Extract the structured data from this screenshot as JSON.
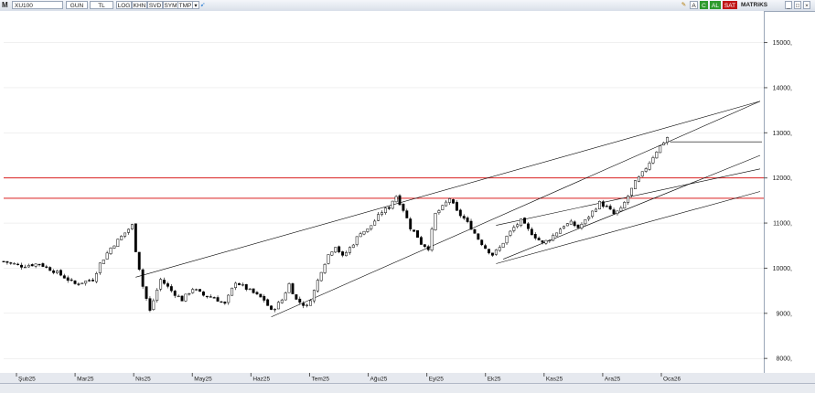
{
  "toolbar": {
    "logo": "M",
    "symbol": "XU100",
    "period": "GUN",
    "currency": "TL",
    "buttons": [
      "LOG",
      "KHN",
      "SVD",
      "SYM",
      "TMP"
    ],
    "dropdown": "▾",
    "pin": "➹",
    "edit": "✎",
    "a_label": "A",
    "c_label": "C",
    "buy_label": "AL",
    "sell_label": "SAT",
    "matrix_label": "MATRiKS",
    "min": "_",
    "max": "□",
    "close": "×"
  },
  "colors": {
    "candle_up": "#ffffff",
    "candle_down": "#000000",
    "horizontal_level": "#d40000",
    "trendline": "#000000",
    "grid": "#e0e0e0"
  },
  "chart_data": {
    "type": "candlestick",
    "instrument": "XU100",
    "ylim": [
      7700,
      15700
    ],
    "y_ticks": [
      8000,
      9000,
      10000,
      11000,
      12000,
      13000,
      14000,
      15000
    ],
    "y_tick_labels": [
      "8000,",
      "9000,",
      "10000,",
      "11000,",
      "12000,",
      "13000,",
      "14000,",
      "15000,"
    ],
    "x_ticks": [
      "Şub25",
      "Mar25",
      "Nis25",
      "May25",
      "Haz25",
      "Tem25",
      "Ağu25",
      "Eyl25",
      "Ek25",
      "Kas25",
      "Ara25",
      "Oca26"
    ],
    "close_path": [
      [
        0,
        10150
      ],
      [
        5,
        10050
      ],
      [
        10,
        10100
      ],
      [
        15,
        9900
      ],
      [
        20,
        9650
      ],
      [
        25,
        9750
      ],
      [
        27,
        10100
      ],
      [
        30,
        10450
      ],
      [
        33,
        10700
      ],
      [
        36,
        10950
      ],
      [
        37,
        10400
      ],
      [
        39,
        9600
      ],
      [
        41,
        9050
      ],
      [
        44,
        9750
      ],
      [
        47,
        9500
      ],
      [
        50,
        9300
      ],
      [
        53,
        9550
      ],
      [
        56,
        9400
      ],
      [
        59,
        9350
      ],
      [
        62,
        9200
      ],
      [
        65,
        9700
      ],
      [
        67,
        9600
      ],
      [
        70,
        9450
      ],
      [
        73,
        9300
      ],
      [
        75,
        9050
      ],
      [
        78,
        9300
      ],
      [
        80,
        9650
      ],
      [
        82,
        9300
      ],
      [
        85,
        9150
      ],
      [
        87,
        9500
      ],
      [
        89,
        9950
      ],
      [
        91,
        10300
      ],
      [
        93,
        10500
      ],
      [
        95,
        10250
      ],
      [
        98,
        10550
      ],
      [
        100,
        10800
      ],
      [
        102,
        10850
      ],
      [
        104,
        11050
      ],
      [
        106,
        11250
      ],
      [
        108,
        11350
      ],
      [
        109,
        11500
      ],
      [
        110,
        11600
      ],
      [
        112,
        11300
      ],
      [
        114,
        10900
      ],
      [
        116,
        10700
      ],
      [
        117,
        10550
      ],
      [
        119,
        10450
      ],
      [
        121,
        11200
      ],
      [
        123,
        11350
      ],
      [
        125,
        11550
      ],
      [
        127,
        11250
      ],
      [
        129,
        11100
      ],
      [
        131,
        10900
      ],
      [
        133,
        10650
      ],
      [
        135,
        10450
      ],
      [
        137,
        10300
      ],
      [
        139,
        10450
      ],
      [
        141,
        10700
      ],
      [
        143,
        10900
      ],
      [
        145,
        11050
      ],
      [
        147,
        10850
      ],
      [
        149,
        10700
      ],
      [
        151,
        10550
      ],
      [
        153,
        10650
      ],
      [
        155,
        10800
      ],
      [
        157,
        10950
      ],
      [
        159,
        11000
      ],
      [
        161,
        10900
      ],
      [
        163,
        11050
      ],
      [
        165,
        11250
      ],
      [
        167,
        11450
      ],
      [
        169,
        11350
      ],
      [
        171,
        11200
      ],
      [
        173,
        11300
      ],
      [
        175,
        11600
      ],
      [
        177,
        11900
      ],
      [
        179,
        12100
      ],
      [
        181,
        12350
      ],
      [
        183,
        12600
      ],
      [
        185,
        12800
      ],
      [
        186,
        12900
      ]
    ],
    "horizontal_levels": [
      12000,
      11550,
      12800
    ],
    "trendlines": [
      {
        "from": [
          37,
          9800
        ],
        "to": [
          212,
          13700
        ]
      },
      {
        "from": [
          75,
          8920
        ],
        "to": [
          212,
          13700
        ]
      },
      {
        "from": [
          138,
          10950
        ],
        "to": [
          212,
          12200
        ]
      },
      {
        "from": [
          138,
          10100
        ],
        "to": [
          212,
          11700
        ]
      },
      {
        "from": [
          140,
          10200
        ],
        "to": [
          212,
          12500
        ]
      }
    ]
  }
}
